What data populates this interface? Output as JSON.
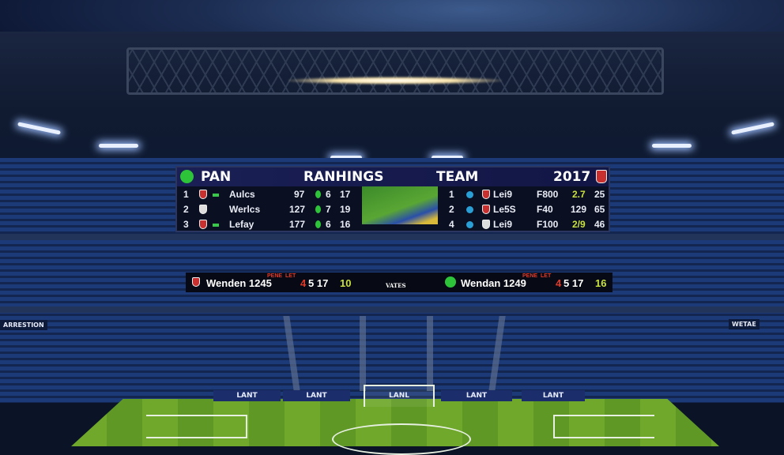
{
  "scoreboard": {
    "header": {
      "left": "PAN",
      "center": "RANHINGS",
      "team": "TEAM",
      "year": "2017"
    },
    "left_rows": [
      {
        "rank": "1",
        "name": "Aulcs",
        "a": "97",
        "b": "6",
        "c": "17"
      },
      {
        "rank": "2",
        "name": "Werlcs",
        "a": "127",
        "b": "7",
        "c": "19"
      },
      {
        "rank": "3",
        "name": "Lefay",
        "a": "177",
        "b": "6",
        "c": "16"
      }
    ],
    "right_rows": [
      {
        "rank": "1",
        "name": "Lei9",
        "code": "F800",
        "a": "2.7",
        "b": "25"
      },
      {
        "rank": "2",
        "name": "Le5S",
        "code": "F40",
        "a": "129",
        "b": "65"
      },
      {
        "rank": "4",
        "name": "Lei9",
        "code": "F100",
        "a": "2/9",
        "b": "46"
      }
    ]
  },
  "lower_board": {
    "left": {
      "name": "Wenden 1245",
      "tag1": "PENE",
      "tag2": "LET",
      "score_red": "4",
      "score": "5 17",
      "extra": "10"
    },
    "center": "VATES",
    "right": {
      "name": "Wendan 1249",
      "tag1": "PENE",
      "tag2": "LET",
      "score_red": "4",
      "score": "5 17",
      "extra": "16"
    }
  },
  "signs": {
    "left": "ARRESTION",
    "right": "WETAE",
    "ad_boards": [
      "LANT",
      "LANT",
      "LANL",
      "LANT",
      "LANT"
    ]
  },
  "colors": {
    "board_bg": "#0b0f22",
    "header_bg": "#1a1f55",
    "seats": "#1d3a78",
    "pitch": "#6fa82a"
  }
}
